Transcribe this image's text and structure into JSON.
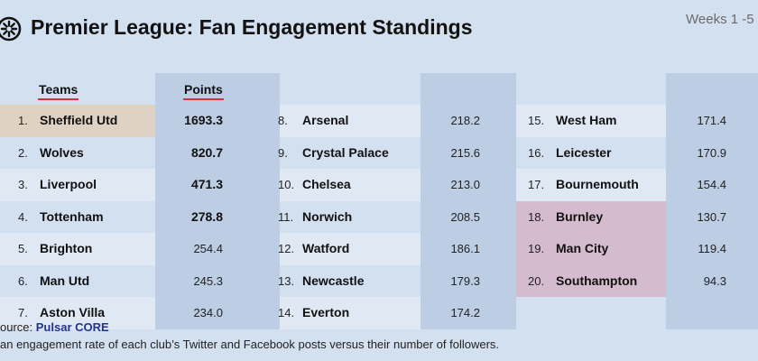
{
  "header": {
    "title": "Premier League: Fan Engagement Standings",
    "subtitle": "Weeks 1 -5"
  },
  "table": {
    "col_teams": "Teams",
    "col_points": "Points",
    "rows": [
      {
        "rank": "1.",
        "team": "Sheffield Utd",
        "points": "1693.3"
      },
      {
        "rank": "2.",
        "team": "Wolves",
        "points": "820.7"
      },
      {
        "rank": "3.",
        "team": "Liverpool",
        "points": "471.3"
      },
      {
        "rank": "4.",
        "team": "Tottenham",
        "points": "278.8"
      },
      {
        "rank": "5.",
        "team": "Brighton",
        "points": "254.4"
      },
      {
        "rank": "6.",
        "team": "Man Utd",
        "points": "245.3"
      },
      {
        "rank": "7.",
        "team": "Aston Villa",
        "points": "234.0"
      },
      {
        "rank": "8.",
        "team": "Arsenal",
        "points": "218.2"
      },
      {
        "rank": "9.",
        "team": "Crystal Palace",
        "points": "215.6"
      },
      {
        "rank": "10.",
        "team": "Chelsea",
        "points": "213.0"
      },
      {
        "rank": "11.",
        "team": "Norwich",
        "points": "208.5"
      },
      {
        "rank": "12.",
        "team": "Watford",
        "points": "186.1"
      },
      {
        "rank": "13.",
        "team": "Newcastle",
        "points": "179.3"
      },
      {
        "rank": "14.",
        "team": "Everton",
        "points": "174.2"
      },
      {
        "rank": "15.",
        "team": "West Ham",
        "points": "171.4"
      },
      {
        "rank": "16.",
        "team": "Leicester",
        "points": "170.9"
      },
      {
        "rank": "17.",
        "team": "Bournemouth",
        "points": "154.4"
      },
      {
        "rank": "18.",
        "team": "Burnley",
        "points": "130.7"
      },
      {
        "rank": "19.",
        "team": "Man City",
        "points": "119.4"
      },
      {
        "rank": "20.",
        "team": "Southampton",
        "points": "94.3"
      }
    ]
  },
  "footer": {
    "source_label": "ource:",
    "source_name": "Pulsar CORE",
    "note": "an engagement rate of each club’s Twitter and Facebook posts versus their number of followers."
  },
  "colors": {
    "background": "#d3e0ef",
    "row_band": "#e0e8f3",
    "points_column": "#bccde4",
    "leader_highlight": "#e0d2c2",
    "relegation_highlight": "#d4bbce",
    "header_underline": "#d5323b",
    "source_link": "#23348f"
  }
}
